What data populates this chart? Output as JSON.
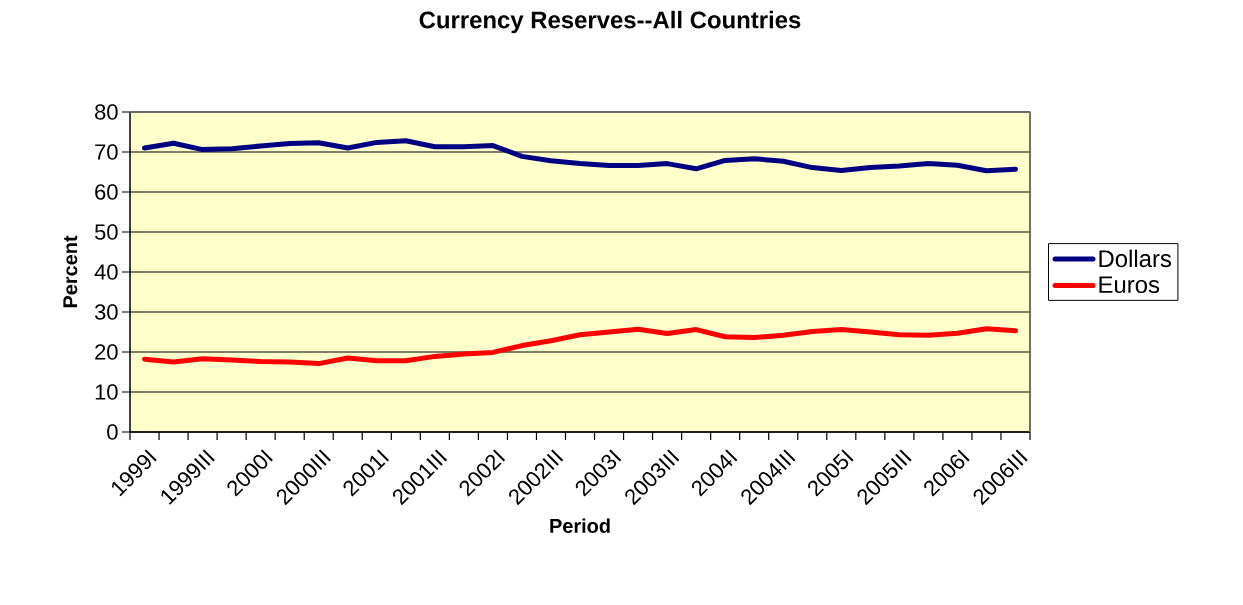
{
  "chart_data": {
    "type": "line",
    "title": "Currency Reserves--All Countries",
    "xlabel": "Period",
    "ylabel": "Percent",
    "categories": [
      "1999I",
      null,
      "1999III",
      null,
      "2000I",
      null,
      "2000III",
      null,
      "2001I",
      null,
      "2001III",
      null,
      "2002I",
      null,
      "2002III",
      null,
      "2003I",
      null,
      "2003III",
      null,
      "2004I",
      null,
      "2004III",
      null,
      "2005I",
      null,
      "2005III",
      null,
      "2006I",
      null,
      "2006III"
    ],
    "series": [
      {
        "name": "Dollars",
        "color": "#000080",
        "values": [
          71.0,
          72.2,
          70.6,
          70.8,
          71.5,
          72.1,
          72.3,
          71.0,
          72.4,
          72.8,
          71.3,
          71.3,
          71.6,
          68.9,
          67.8,
          67.1,
          66.6,
          66.6,
          67.1,
          65.8,
          67.9,
          68.3,
          67.7,
          66.1,
          65.4,
          66.1,
          66.5,
          67.1,
          66.7,
          65.3,
          65.7
        ]
      },
      {
        "name": "Euros",
        "color": "#ff0000",
        "values": [
          18.2,
          17.5,
          18.3,
          18.0,
          17.6,
          17.5,
          17.1,
          18.5,
          17.8,
          17.8,
          18.9,
          19.5,
          19.9,
          21.6,
          22.8,
          24.3,
          25.0,
          25.7,
          24.6,
          25.6,
          23.8,
          23.6,
          24.2,
          25.1,
          25.6,
          25.0,
          24.3,
          24.2,
          24.7,
          25.8,
          25.3
        ]
      }
    ],
    "ylim": [
      0,
      80
    ],
    "yticks": [
      0,
      10,
      20,
      30,
      40,
      50,
      60,
      70,
      80
    ],
    "grid": "y",
    "legend": "right",
    "marker": "none",
    "line_style": "solid"
  }
}
